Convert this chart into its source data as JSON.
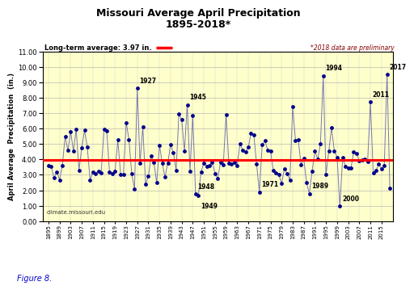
{
  "title_line1": "Missouri Average April Precipitation",
  "title_line2": "1895-2018*",
  "ylabel": "April Average  Precipitation  (in.)",
  "long_term_avg": 3.97,
  "long_term_label": "Long-term average: 3.97 in.",
  "preliminary_note": "*2018 data are preliminary",
  "website": "climate.missouri.edu",
  "figure_label": "Figure 8.",
  "ylim": [
    0.0,
    11.0
  ],
  "yticks": [
    0.0,
    1.0,
    2.0,
    3.0,
    4.0,
    5.0,
    6.0,
    7.0,
    8.0,
    9.0,
    10.0,
    11.0
  ],
  "bg_color": "#FFFFCC",
  "line_color": "#7777AA",
  "dot_color": "#00008B",
  "avg_line_color": "#FF0000",
  "annotations": [
    {
      "year": 1927,
      "value": 8.62,
      "label": "1927",
      "xoff": 2,
      "yoff": 5
    },
    {
      "year": 1945,
      "value": 7.55,
      "label": "1945",
      "xoff": 2,
      "yoff": 5
    },
    {
      "year": 1948,
      "value": 1.76,
      "label": "1948",
      "xoff": 2,
      "yoff": 5
    },
    {
      "year": 1949,
      "value": 1.65,
      "label": "1949",
      "xoff": 2,
      "yoff": -11
    },
    {
      "year": 1971,
      "value": 1.88,
      "label": "1971",
      "xoff": 2,
      "yoff": 5
    },
    {
      "year": 1989,
      "value": 1.79,
      "label": "1989",
      "xoff": 2,
      "yoff": 5
    },
    {
      "year": 1994,
      "value": 9.42,
      "label": "1994",
      "xoff": 2,
      "yoff": 5
    },
    {
      "year": 2000,
      "value": 0.96,
      "label": "2000",
      "xoff": 2,
      "yoff": 5
    },
    {
      "year": 2011,
      "value": 7.72,
      "label": "2011",
      "xoff": 2,
      "yoff": 5
    },
    {
      "year": 2017,
      "value": 9.51,
      "label": "2017",
      "xoff": 2,
      "yoff": 5
    }
  ],
  "years": [
    1895,
    1896,
    1897,
    1898,
    1899,
    1900,
    1901,
    1902,
    1903,
    1904,
    1905,
    1906,
    1907,
    1908,
    1909,
    1910,
    1911,
    1912,
    1913,
    1914,
    1915,
    1916,
    1917,
    1918,
    1919,
    1920,
    1921,
    1922,
    1923,
    1924,
    1925,
    1926,
    1927,
    1928,
    1929,
    1930,
    1931,
    1932,
    1933,
    1934,
    1935,
    1936,
    1937,
    1938,
    1939,
    1940,
    1941,
    1942,
    1943,
    1944,
    1945,
    1946,
    1947,
    1948,
    1949,
    1950,
    1951,
    1952,
    1953,
    1954,
    1955,
    1956,
    1957,
    1958,
    1959,
    1960,
    1961,
    1962,
    1963,
    1964,
    1965,
    1966,
    1967,
    1968,
    1969,
    1970,
    1971,
    1972,
    1973,
    1974,
    1975,
    1976,
    1977,
    1978,
    1979,
    1980,
    1981,
    1982,
    1983,
    1984,
    1985,
    1986,
    1987,
    1988,
    1989,
    1990,
    1991,
    1992,
    1993,
    1994,
    1995,
    1996,
    1997,
    1998,
    1999,
    2000,
    2001,
    2002,
    2003,
    2004,
    2005,
    2006,
    2007,
    2008,
    2009,
    2010,
    2011,
    2012,
    2013,
    2014,
    2015,
    2016,
    2017,
    2018
  ],
  "values": [
    3.62,
    3.55,
    2.8,
    3.2,
    2.68,
    3.6,
    5.5,
    4.6,
    5.8,
    4.55,
    5.95,
    3.3,
    4.75,
    5.88,
    4.8,
    2.68,
    3.2,
    3.1,
    3.25,
    3.15,
    5.95,
    5.85,
    3.2,
    3.1,
    3.25,
    5.27,
    3.05,
    3.0,
    6.4,
    5.3,
    3.08,
    2.1,
    8.62,
    3.78,
    6.1,
    2.42,
    2.9,
    4.22,
    3.8,
    2.48,
    4.93,
    3.75,
    2.85,
    3.78,
    4.95,
    4.45,
    3.3,
    6.93,
    6.58,
    4.52,
    7.55,
    3.25,
    6.85,
    1.76,
    1.65,
    3.2,
    3.78,
    3.55,
    3.62,
    3.82,
    3.1,
    2.78,
    3.8,
    3.65,
    6.9,
    3.75,
    3.7,
    3.8,
    3.6,
    5.0,
    4.6,
    4.5,
    4.78,
    5.7,
    5.58,
    3.7,
    1.88,
    4.95,
    5.2,
    4.62,
    4.55,
    3.3,
    3.15,
    3.02,
    2.45,
    3.38,
    3.1,
    2.65,
    7.4,
    5.25,
    5.3,
    3.65,
    4.05,
    2.48,
    1.79,
    3.25,
    4.52,
    4.02,
    5.0,
    9.42,
    3.02,
    4.52,
    6.05,
    4.55,
    4.15,
    0.96,
    4.12,
    3.55,
    3.42,
    3.45,
    4.5,
    4.38,
    3.92,
    3.95,
    4.02,
    3.85,
    7.72,
    3.12,
    3.28,
    3.7,
    3.4,
    3.62,
    9.51,
    2.15
  ]
}
